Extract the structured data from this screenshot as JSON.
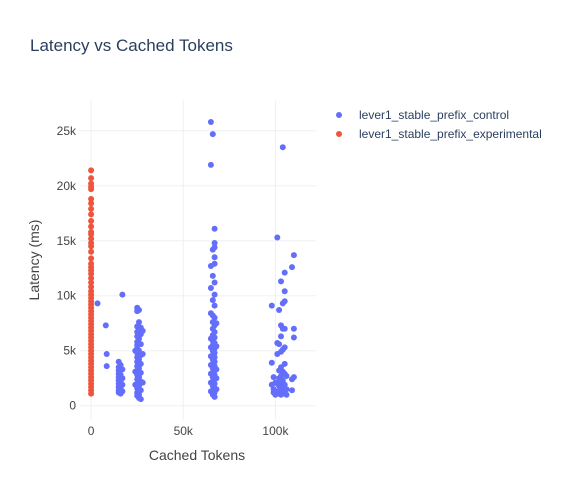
{
  "chart_data": {
    "type": "scatter",
    "title": "Latency vs Cached Tokens",
    "xlabel": "Cached Tokens",
    "ylabel": "Latency (ms)",
    "xlim": [
      -6000,
      122000
    ],
    "ylim": [
      -1300,
      27800
    ],
    "x_ticks": [
      0,
      50000,
      100000
    ],
    "x_tick_labels": [
      "0",
      "50k",
      "100k"
    ],
    "y_ticks": [
      0,
      5000,
      10000,
      15000,
      20000,
      25000
    ],
    "y_tick_labels": [
      "0",
      "5k",
      "10k",
      "15k",
      "20k",
      "25k"
    ],
    "grid": true,
    "legend_position": "top-right",
    "series": [
      {
        "name": "lever1_stable_prefix_control",
        "color": "#636efa",
        "points": [
          [
            3500,
            9300
          ],
          [
            8000,
            7300
          ],
          [
            8500,
            4700
          ],
          [
            8500,
            3600
          ],
          [
            15000,
            4000
          ],
          [
            15000,
            3500
          ],
          [
            15000,
            3200
          ],
          [
            15000,
            2900
          ],
          [
            15000,
            2600
          ],
          [
            15000,
            2300
          ],
          [
            15000,
            2000
          ],
          [
            15000,
            1700
          ],
          [
            15000,
            1400
          ],
          [
            15000,
            1200
          ],
          [
            16000,
            3700
          ],
          [
            16000,
            2800
          ],
          [
            16000,
            2200
          ],
          [
            16000,
            1600
          ],
          [
            16000,
            1100
          ],
          [
            17000,
            10100
          ],
          [
            17000,
            3300
          ],
          [
            17000,
            2500
          ],
          [
            17000,
            1900
          ],
          [
            17000,
            1300
          ],
          [
            24000,
            5000
          ],
          [
            24000,
            3100
          ],
          [
            24000,
            1900
          ],
          [
            25000,
            8900
          ],
          [
            25000,
            8600
          ],
          [
            25000,
            7200
          ],
          [
            25000,
            6700
          ],
          [
            25000,
            6300
          ],
          [
            25000,
            5800
          ],
          [
            25000,
            5500
          ],
          [
            25000,
            5200
          ],
          [
            25000,
            4800
          ],
          [
            25000,
            4400
          ],
          [
            25000,
            4000
          ],
          [
            25000,
            3600
          ],
          [
            25000,
            3200
          ],
          [
            25000,
            2800
          ],
          [
            25000,
            2400
          ],
          [
            25000,
            2000
          ],
          [
            25000,
            1600
          ],
          [
            25000,
            1200
          ],
          [
            25000,
            900
          ],
          [
            26000,
            8700
          ],
          [
            26000,
            7600
          ],
          [
            26000,
            6900
          ],
          [
            26000,
            6100
          ],
          [
            26000,
            5000
          ],
          [
            26000,
            4200
          ],
          [
            26000,
            3400
          ],
          [
            26000,
            2600
          ],
          [
            26000,
            1800
          ],
          [
            26000,
            1000
          ],
          [
            26000,
            700
          ],
          [
            27000,
            7100
          ],
          [
            27000,
            6500
          ],
          [
            27000,
            5600
          ],
          [
            27000,
            4600
          ],
          [
            27000,
            3800
          ],
          [
            27000,
            3000
          ],
          [
            27000,
            2200
          ],
          [
            27000,
            1400
          ],
          [
            27000,
            600
          ],
          [
            28000,
            6800
          ],
          [
            28000,
            4700
          ],
          [
            28000,
            2100
          ],
          [
            65000,
            25800
          ],
          [
            65000,
            21900
          ],
          [
            65000,
            12700
          ],
          [
            65000,
            10700
          ],
          [
            65000,
            8400
          ],
          [
            65000,
            6100
          ],
          [
            65000,
            5300
          ],
          [
            65000,
            4500
          ],
          [
            65000,
            3700
          ],
          [
            65000,
            2900
          ],
          [
            65000,
            2100
          ],
          [
            65000,
            1300
          ],
          [
            66000,
            24700
          ],
          [
            66000,
            14200
          ],
          [
            66000,
            11800
          ],
          [
            66000,
            9600
          ],
          [
            66000,
            8200
          ],
          [
            66000,
            7600
          ],
          [
            66000,
            7000
          ],
          [
            66000,
            6400
          ],
          [
            66000,
            5900
          ],
          [
            66000,
            5500
          ],
          [
            66000,
            5000
          ],
          [
            66000,
            4600
          ],
          [
            66000,
            4200
          ],
          [
            66000,
            3800
          ],
          [
            66000,
            3400
          ],
          [
            66000,
            3000
          ],
          [
            66000,
            2600
          ],
          [
            66000,
            2200
          ],
          [
            66000,
            1800
          ],
          [
            66000,
            1400
          ],
          [
            66000,
            1000
          ],
          [
            67000,
            16100
          ],
          [
            67000,
            14800
          ],
          [
            67000,
            14400
          ],
          [
            67000,
            13500
          ],
          [
            67000,
            12900
          ],
          [
            67000,
            11200
          ],
          [
            67000,
            10100
          ],
          [
            67000,
            9100
          ],
          [
            67000,
            8000
          ],
          [
            67000,
            7300
          ],
          [
            67000,
            6700
          ],
          [
            67000,
            6200
          ],
          [
            67000,
            5700
          ],
          [
            67000,
            5200
          ],
          [
            67000,
            4800
          ],
          [
            67000,
            4400
          ],
          [
            67000,
            4000
          ],
          [
            67000,
            3600
          ],
          [
            67000,
            3200
          ],
          [
            67000,
            2800
          ],
          [
            67000,
            2400
          ],
          [
            67000,
            2000
          ],
          [
            67000,
            1600
          ],
          [
            67000,
            1200
          ],
          [
            67000,
            800
          ],
          [
            68000,
            7500
          ],
          [
            68000,
            5400
          ],
          [
            68000,
            3300
          ],
          [
            68000,
            2500
          ],
          [
            68000,
            1500
          ],
          [
            98000,
            9100
          ],
          [
            98000,
            3900
          ],
          [
            98000,
            1900
          ],
          [
            99000,
            2600
          ],
          [
            99000,
            1500
          ],
          [
            99000,
            1200
          ],
          [
            100000,
            2100
          ],
          [
            100000,
            1000
          ],
          [
            101000,
            15300
          ],
          [
            101000,
            5700
          ],
          [
            101000,
            4700
          ],
          [
            101000,
            2000
          ],
          [
            101000,
            1300
          ],
          [
            102000,
            8700
          ],
          [
            102000,
            5600
          ],
          [
            102000,
            3200
          ],
          [
            102000,
            2500
          ],
          [
            102000,
            1800
          ],
          [
            102000,
            1100
          ],
          [
            103000,
            11300
          ],
          [
            103000,
            7300
          ],
          [
            103000,
            6300
          ],
          [
            103000,
            4900
          ],
          [
            103000,
            3500
          ],
          [
            103000,
            2700
          ],
          [
            103000,
            2100
          ],
          [
            103000,
            1500
          ],
          [
            103000,
            1000
          ],
          [
            104000,
            23500
          ],
          [
            104000,
            9300
          ],
          [
            104000,
            7000
          ],
          [
            104000,
            5100
          ],
          [
            104000,
            3100
          ],
          [
            104000,
            2300
          ],
          [
            104000,
            1600
          ],
          [
            104000,
            1100
          ],
          [
            105000,
            12100
          ],
          [
            105000,
            10400
          ],
          [
            105000,
            9500
          ],
          [
            105000,
            7000
          ],
          [
            105000,
            5300
          ],
          [
            105000,
            3800
          ],
          [
            105000,
            2900
          ],
          [
            105000,
            1900
          ],
          [
            105000,
            1300
          ],
          [
            106000,
            2700
          ],
          [
            106000,
            1500
          ],
          [
            106000,
            1000
          ],
          [
            109000,
            12600
          ],
          [
            109000,
            2400
          ],
          [
            109000,
            1400
          ],
          [
            110000,
            13700
          ],
          [
            110000,
            7000
          ],
          [
            110000,
            6200
          ],
          [
            110000,
            2600
          ]
        ]
      },
      {
        "name": "lever1_stable_prefix_experimental",
        "color": "#ef553b",
        "points": [
          [
            0,
            21400
          ],
          [
            0,
            20700
          ],
          [
            0,
            20200
          ],
          [
            0,
            19900
          ],
          [
            0,
            19700
          ],
          [
            0,
            18800
          ],
          [
            0,
            18400
          ],
          [
            0,
            17900
          ],
          [
            0,
            17400
          ],
          [
            0,
            16800
          ],
          [
            0,
            16300
          ],
          [
            0,
            15800
          ],
          [
            0,
            15600
          ],
          [
            0,
            15200
          ],
          [
            0,
            14800
          ],
          [
            0,
            14500
          ],
          [
            0,
            14000
          ],
          [
            0,
            13400
          ],
          [
            0,
            12900
          ],
          [
            0,
            12600
          ],
          [
            0,
            12300
          ],
          [
            0,
            12000
          ],
          [
            0,
            11600
          ],
          [
            0,
            11200
          ],
          [
            0,
            10800
          ],
          [
            0,
            10400
          ],
          [
            0,
            10100
          ],
          [
            0,
            9800
          ],
          [
            0,
            9500
          ],
          [
            0,
            9200
          ],
          [
            0,
            8900
          ],
          [
            0,
            8600
          ],
          [
            0,
            8300
          ],
          [
            0,
            8000
          ],
          [
            0,
            7700
          ],
          [
            0,
            7400
          ],
          [
            0,
            7100
          ],
          [
            0,
            6800
          ],
          [
            0,
            6500
          ],
          [
            0,
            6200
          ],
          [
            0,
            5900
          ],
          [
            0,
            5600
          ],
          [
            0,
            5300
          ],
          [
            0,
            5000
          ],
          [
            0,
            4700
          ],
          [
            0,
            4400
          ],
          [
            0,
            4100
          ],
          [
            0,
            3800
          ],
          [
            0,
            3500
          ],
          [
            0,
            3200
          ],
          [
            0,
            2900
          ],
          [
            0,
            2600
          ],
          [
            0,
            2300
          ],
          [
            0,
            2000
          ],
          [
            0,
            1700
          ],
          [
            0,
            1400
          ],
          [
            0,
            1100
          ]
        ]
      }
    ]
  }
}
